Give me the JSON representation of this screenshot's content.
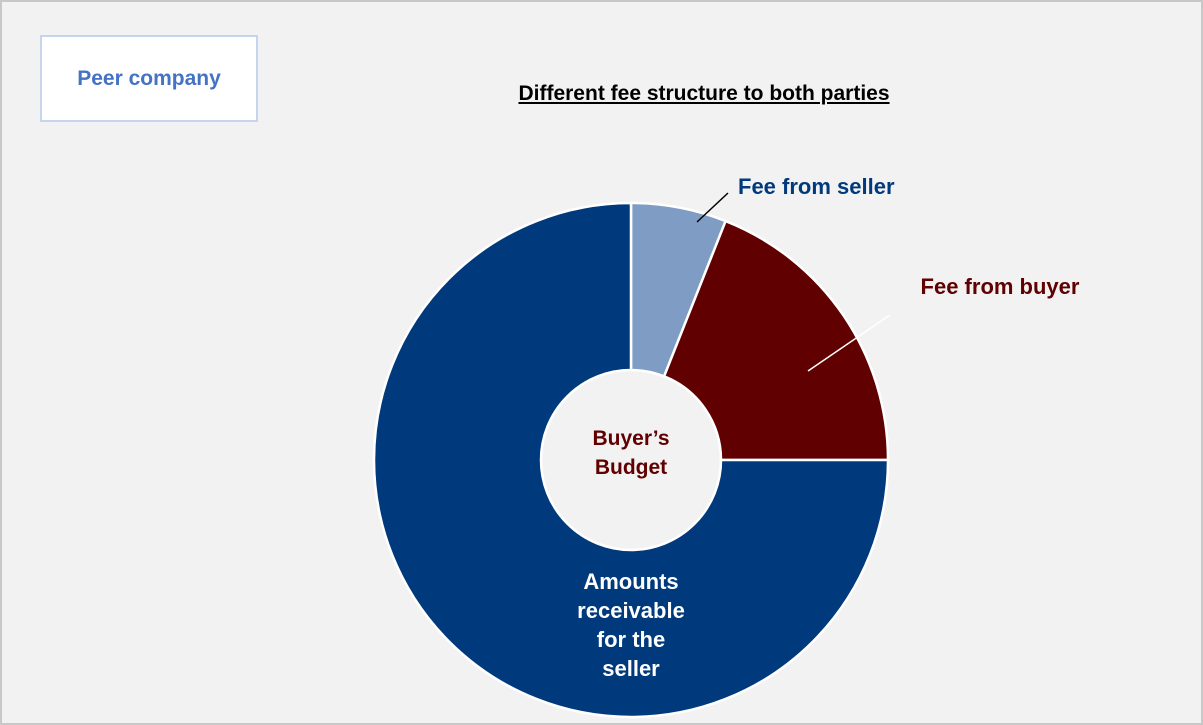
{
  "header": {
    "tag": "Peer company"
  },
  "chart_data": {
    "type": "pie",
    "title": "Different fee structure to both parties",
    "center_label": "Buyer’s Budget",
    "categories": [
      "Fee from seller",
      "Fee from buyer",
      "Amounts receivable for the seller"
    ],
    "values": [
      6,
      19,
      75
    ],
    "colors": [
      "#7f9dc4",
      "#600000",
      "#003a7d"
    ],
    "label_colors": [
      "#003a7d",
      "#600000",
      "#ffffff"
    ]
  }
}
